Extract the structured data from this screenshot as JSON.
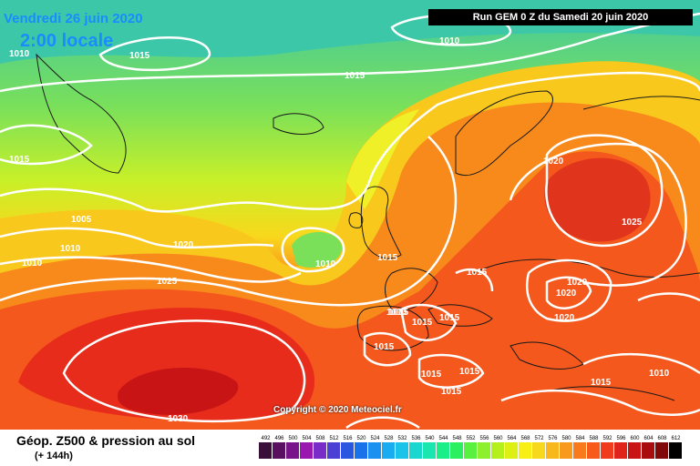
{
  "header": {
    "date": "Vendredi 26 juin 2020",
    "time": "2:00 locale",
    "run": "Run GEM 0 Z du Samedi 20 juin 2020"
  },
  "copyright": "Copyright © 2020 Meteociel.fr",
  "footer": {
    "title": "Géop. Z500 & pression au sol",
    "subtitle": "(+ 144h)"
  },
  "legend": {
    "ticks": [
      "492",
      "496",
      "500",
      "504",
      "508",
      "512",
      "516",
      "520",
      "524",
      "528",
      "532",
      "536",
      "540",
      "544",
      "548",
      "552",
      "556",
      "560",
      "564",
      "568",
      "572",
      "576",
      "580",
      "584",
      "588",
      "592",
      "596",
      "600",
      "604",
      "608",
      "612"
    ],
    "colors": [
      "#3a0f3a",
      "#5a1060",
      "#78148a",
      "#9a18b0",
      "#7a2cc8",
      "#4b3fd6",
      "#2a56e0",
      "#1a72ea",
      "#1a90f0",
      "#1aacf0",
      "#1ac4e8",
      "#1ad8d0",
      "#1ae6b0",
      "#1aee88",
      "#2af060",
      "#5af040",
      "#8cf02c",
      "#b4f01c",
      "#dcf014",
      "#f8f014",
      "#f8d81c",
      "#f8b81c",
      "#f89a1c",
      "#f87a1c",
      "#f85a1c",
      "#f03c1c",
      "#e0241c",
      "#c81414",
      "#a80c0c",
      "#800808",
      "#000000"
    ]
  },
  "isobars": [
    {
      "label": "1010"
    },
    {
      "label": "1015"
    },
    {
      "label": "1010"
    },
    {
      "label": "1015"
    },
    {
      "label": "1015"
    },
    {
      "label": "1005"
    },
    {
      "label": "1010"
    },
    {
      "label": "1010"
    },
    {
      "label": "1020"
    },
    {
      "label": "1025"
    },
    {
      "label": "1010"
    },
    {
      "label": "1015"
    },
    {
      "label": "1020"
    },
    {
      "label": "1025"
    },
    {
      "label": "1015"
    },
    {
      "label": "1020"
    },
    {
      "label": "1020"
    },
    {
      "label": "1020"
    },
    {
      "label": "1015"
    },
    {
      "label": "1015"
    },
    {
      "label": "1015"
    },
    {
      "label": "1015"
    },
    {
      "label": "1015"
    },
    {
      "label": "1015"
    },
    {
      "label": "1010"
    },
    {
      "label": "1015"
    },
    {
      "label": "1030"
    },
    {
      "label": "1010"
    },
    {
      "label": "1015"
    }
  ]
}
